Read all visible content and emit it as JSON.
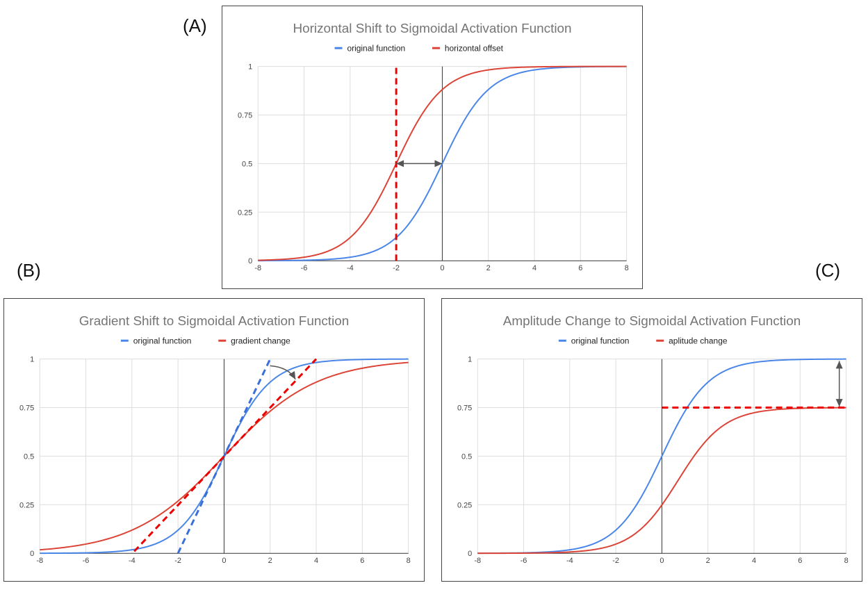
{
  "panel_labels": [
    "(A)",
    "(B)",
    "(C)"
  ],
  "colors": {
    "blue": "#4a86e8",
    "red": "#db4437",
    "dashed_red": "#ee0000",
    "dashed_blue": "#3a6fd8",
    "arrow": "#555555",
    "grid": "#dddddd",
    "zero_axis": "#333333"
  },
  "chart_data": [
    {
      "type": "line",
      "title": "Horizontal Shift to Sigmoidal Activation Function",
      "xlabel": "",
      "ylabel": "",
      "xlim": [
        -8,
        8
      ],
      "ylim": [
        0,
        1
      ],
      "xticks": [
        -8,
        -6,
        -4,
        -2,
        0,
        2,
        4,
        6,
        8
      ],
      "yticks": [
        0,
        0.25,
        0.5,
        0.75,
        1
      ],
      "ytick_labels": [
        "0",
        "0.25",
        "0.5",
        "0.75",
        "1"
      ],
      "legend_position": "top-center",
      "series": [
        {
          "name": "original function",
          "color": "blue",
          "function": "amplitude / (1 + exp(-gain*(x - shift)))",
          "shift": 0,
          "gain": 1,
          "amplitude": 1
        },
        {
          "name": "horizontal offset",
          "color": "red",
          "function": "amplitude / (1 + exp(-gain*(x - shift)))",
          "shift": -2,
          "gain": 1,
          "amplitude": 1
        }
      ],
      "annotations": [
        {
          "kind": "dashed_vline",
          "x": -2,
          "y_from": 0,
          "y_to": 1,
          "color": "dashed_red"
        },
        {
          "kind": "double_arrow",
          "from": [
            -2,
            0.5
          ],
          "to": [
            0,
            0.5
          ],
          "color": "arrow"
        }
      ]
    },
    {
      "type": "line",
      "title": "Gradient Shift to Sigmoidal Activation Function",
      "xlabel": "",
      "ylabel": "",
      "xlim": [
        -8,
        8
      ],
      "ylim": [
        0,
        1
      ],
      "xticks": [
        -8,
        -6,
        -4,
        -2,
        0,
        2,
        4,
        6,
        8
      ],
      "yticks": [
        0,
        0.25,
        0.5,
        0.75,
        1
      ],
      "ytick_labels": [
        "0",
        "0.25",
        "0.5",
        "0.75",
        "1"
      ],
      "legend_position": "top-center",
      "series": [
        {
          "name": "original function",
          "color": "blue",
          "function": "amplitude / (1 + exp(-gain*(x - shift)))",
          "shift": 0,
          "gain": 1,
          "amplitude": 1
        },
        {
          "name": "gradient change",
          "color": "red",
          "function": "amplitude / (1 + exp(-gain*(x - shift)))",
          "shift": 0,
          "gain": 0.5,
          "amplitude": 1
        }
      ],
      "annotations": [
        {
          "kind": "dashed_line",
          "from": [
            -2,
            0
          ],
          "to": [
            2,
            1
          ],
          "color": "dashed_blue"
        },
        {
          "kind": "dashed_line",
          "from": [
            -3.9,
            0.01
          ],
          "to": [
            4,
            1
          ],
          "color": "dashed_red"
        },
        {
          "kind": "curved_arrow",
          "from": [
            2,
            0.965
          ],
          "to": [
            3.1,
            0.895
          ],
          "color": "arrow"
        }
      ]
    },
    {
      "type": "line",
      "title": "Amplitude Change to Sigmoidal Activation Function",
      "xlabel": "",
      "ylabel": "",
      "xlim": [
        -8,
        8
      ],
      "ylim": [
        0,
        1
      ],
      "xticks": [
        -8,
        -6,
        -4,
        -2,
        0,
        2,
        4,
        6,
        8
      ],
      "yticks": [
        0,
        0.25,
        0.5,
        0.75,
        1
      ],
      "ytick_labels": [
        "0",
        "0.25",
        "0.5",
        "0.75",
        "1"
      ],
      "legend_position": "top-center",
      "series": [
        {
          "name": "original function",
          "color": "blue",
          "function": "amplitude / (1 + exp(-gain*(x - shift)))",
          "shift": 0,
          "gain": 1,
          "amplitude": 1
        },
        {
          "name": "aplitude change",
          "color": "red",
          "function": "amplitude / (1 + exp(-gain*(x - shift)))",
          "shift": 0.7,
          "gain": 1,
          "amplitude": 0.75
        }
      ],
      "annotations": [
        {
          "kind": "dashed_hline",
          "y": 0.75,
          "x_from": 0,
          "x_to": 8,
          "color": "dashed_red"
        },
        {
          "kind": "double_arrow",
          "from": [
            7.7,
            0.99
          ],
          "to": [
            7.7,
            0.755
          ],
          "color": "arrow"
        }
      ]
    }
  ]
}
